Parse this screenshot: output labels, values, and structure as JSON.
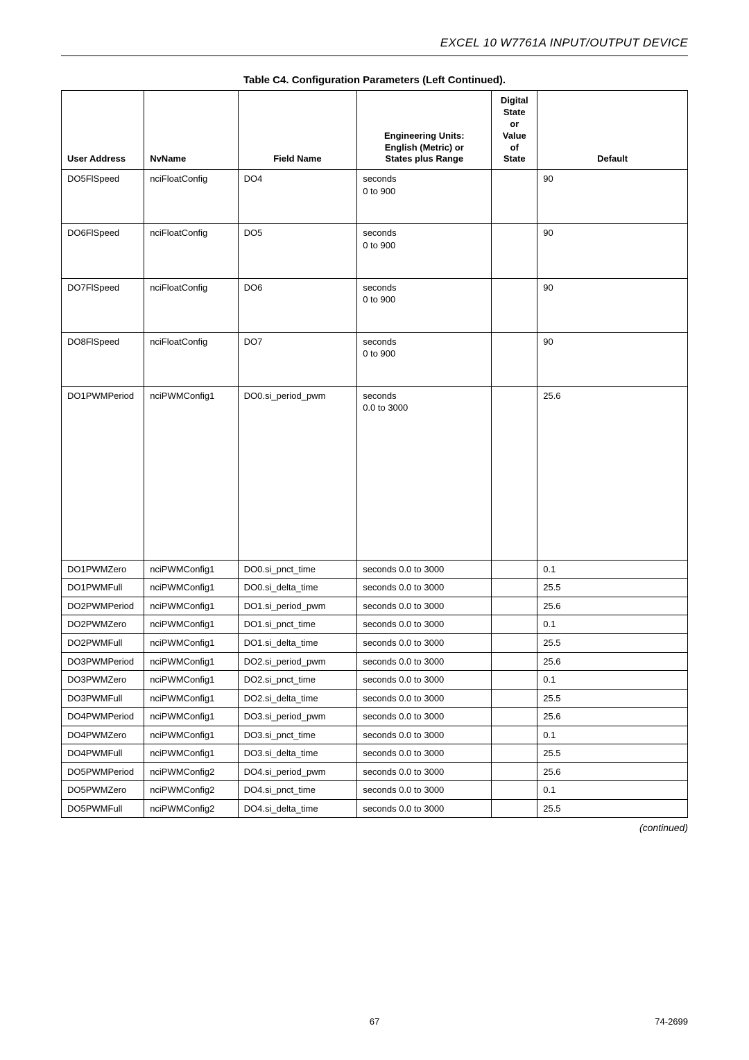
{
  "header": {
    "title": "EXCEL 10 W7761A INPUT/OUTPUT DEVICE"
  },
  "table": {
    "title": "Table C4. Configuration Parameters (Left Continued).",
    "columns": {
      "user_address": "User Address",
      "nv_name": "NvName",
      "field_name": "Field Name",
      "eng_units_l1": "Engineering Units:",
      "eng_units_l2": "English (Metric) or",
      "eng_units_l3": "States plus Range",
      "digital_state_l1": "Digital",
      "digital_state_l2": "State",
      "digital_state_l3": "or",
      "digital_state_l4": "Value",
      "digital_state_l5": "of",
      "digital_state_l6": "State",
      "default": "Default"
    },
    "rows": [
      {
        "ua": "DO5FlSpeed",
        "nv": "nciFloatConfig",
        "fn": "DO4",
        "eu": "seconds\n0 to 900",
        "ds": "",
        "df": "90",
        "style": "tall"
      },
      {
        "ua": "DO6FlSpeed",
        "nv": "nciFloatConfig",
        "fn": "DO5",
        "eu": "seconds\n0 to 900",
        "ds": "",
        "df": "90",
        "style": "tall"
      },
      {
        "ua": "DO7FlSpeed",
        "nv": "nciFloatConfig",
        "fn": "DO6",
        "eu": "seconds\n0 to 900",
        "ds": "",
        "df": "90",
        "style": "tall"
      },
      {
        "ua": "DO8FlSpeed",
        "nv": "nciFloatConfig",
        "fn": "DO7",
        "eu": "seconds\n0 to 900",
        "ds": "",
        "df": "90",
        "style": "tall"
      },
      {
        "ua": "DO1PWMPeriod",
        "nv": "nciPWMConfig1",
        "fn": "DO0.si_period_pwm",
        "eu": "seconds\n0.0 to 3000",
        "ds": "",
        "df": "25.6",
        "style": "xtall"
      },
      {
        "ua": "DO1PWMZero",
        "nv": "nciPWMConfig1",
        "fn": "DO0.si_pnct_time",
        "eu": "seconds 0.0 to 3000",
        "ds": "",
        "df": "0.1"
      },
      {
        "ua": "DO1PWMFull",
        "nv": "nciPWMConfig1",
        "fn": "DO0.si_delta_time",
        "eu": "seconds 0.0 to 3000",
        "ds": "",
        "df": "25.5"
      },
      {
        "ua": "DO2PWMPeriod",
        "nv": "nciPWMConfig1",
        "fn": "DO1.si_period_pwm",
        "eu": "seconds 0.0 to 3000",
        "ds": "",
        "df": "25.6"
      },
      {
        "ua": "DO2PWMZero",
        "nv": "nciPWMConfig1",
        "fn": "DO1.si_pnct_time",
        "eu": "seconds 0.0 to 3000",
        "ds": "",
        "df": "0.1"
      },
      {
        "ua": "DO2PWMFull",
        "nv": "nciPWMConfig1",
        "fn": "DO1.si_delta_time",
        "eu": "seconds 0.0 to 3000",
        "ds": "",
        "df": "25.5"
      },
      {
        "ua": "DO3PWMPeriod",
        "nv": "nciPWMConfig1",
        "fn": "DO2.si_period_pwm",
        "eu": "seconds 0.0 to 3000",
        "ds": "",
        "df": "25.6"
      },
      {
        "ua": "DO3PWMZero",
        "nv": "nciPWMConfig1",
        "fn": "DO2.si_pnct_time",
        "eu": "seconds 0.0 to 3000",
        "ds": "",
        "df": "0.1"
      },
      {
        "ua": "DO3PWMFull",
        "nv": "nciPWMConfig1",
        "fn": "DO2.si_delta_time",
        "eu": "seconds 0.0 to 3000",
        "ds": "",
        "df": "25.5"
      },
      {
        "ua": "DO4PWMPeriod",
        "nv": "nciPWMConfig1",
        "fn": "DO3.si_period_pwm",
        "eu": "seconds 0.0 to 3000",
        "ds": "",
        "df": "25.6"
      },
      {
        "ua": "DO4PWMZero",
        "nv": "nciPWMConfig1",
        "fn": "DO3.si_pnct_time",
        "eu": "seconds 0.0 to 3000",
        "ds": "",
        "df": "0.1"
      },
      {
        "ua": "DO4PWMFull",
        "nv": "nciPWMConfig1",
        "fn": "DO3.si_delta_time",
        "eu": "seconds 0.0 to 3000",
        "ds": "",
        "df": "25.5"
      },
      {
        "ua": "DO5PWMPeriod",
        "nv": "nciPWMConfig2",
        "fn": "DO4.si_period_pwm",
        "eu": "seconds 0.0 to 3000",
        "ds": "",
        "df": "25.6"
      },
      {
        "ua": "DO5PWMZero",
        "nv": "nciPWMConfig2",
        "fn": "DO4.si_pnct_time",
        "eu": "seconds 0.0 to 3000",
        "ds": "",
        "df": "0.1"
      },
      {
        "ua": "DO5PWMFull",
        "nv": "nciPWMConfig2",
        "fn": "DO4.si_delta_time",
        "eu": "seconds 0.0 to 3000",
        "ds": "",
        "df": "25.5"
      }
    ]
  },
  "continued_label": "(continued)",
  "footer": {
    "page_number": "67",
    "doc_number": "74-2699"
  }
}
